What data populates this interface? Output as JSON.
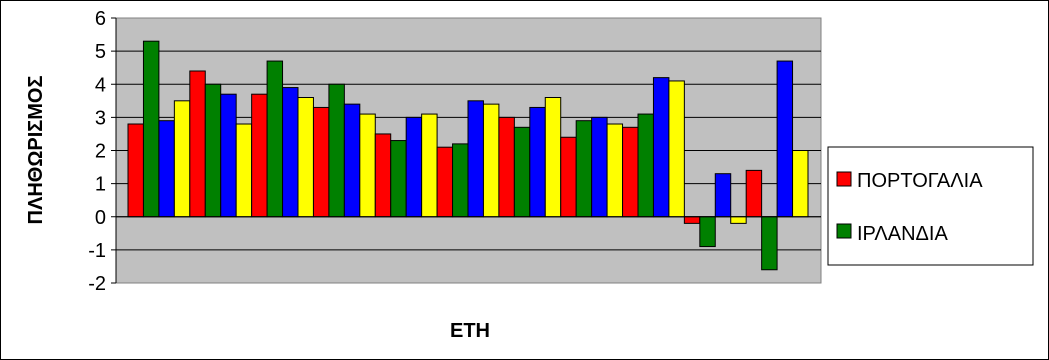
{
  "chart_data": {
    "type": "bar",
    "title": "",
    "xlabel": "ΕΤΗ",
    "ylabel": "ΠΛΗΘΩΡΙΣΜΟΣ",
    "ylim": [
      -2,
      6
    ],
    "yticks": [
      6,
      5,
      4,
      3,
      2,
      1,
      0,
      -1,
      -2
    ],
    "grid": true,
    "legend_position": "right",
    "palette": [
      "#ff0000",
      "#008000",
      "#0000ff",
      "#ffff00"
    ],
    "plot_background": "#c0c0c0",
    "series": [
      {
        "name": "ΠΟΡΤΟΓΑΛΙΑ",
        "color": "#ff0000"
      },
      {
        "name": "ΙΡΛΑΝΔΙΑ",
        "color": "#008000"
      }
    ],
    "values": [
      2.8,
      5.3,
      2.9,
      3.5,
      4.4,
      4.0,
      3.7,
      2.8,
      3.7,
      4.7,
      3.9,
      3.6,
      3.3,
      4.0,
      3.4,
      3.1,
      2.5,
      2.3,
      3.0,
      3.1,
      2.1,
      2.2,
      3.5,
      3.4,
      3.0,
      2.7,
      3.3,
      3.6,
      2.4,
      2.9,
      3.0,
      2.8,
      2.7,
      3.1,
      4.2,
      4.1,
      -0.2,
      -0.9,
      1.3,
      -0.2,
      1.4,
      -1.6,
      4.7,
      2.0
    ]
  }
}
